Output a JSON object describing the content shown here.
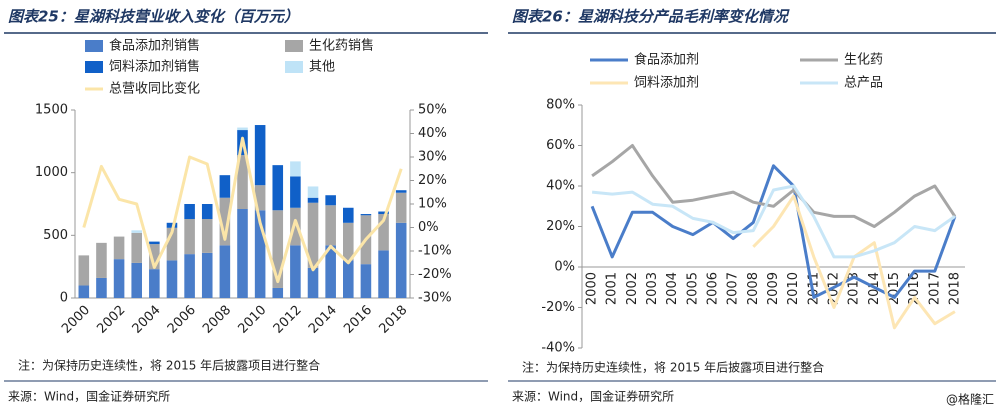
{
  "chart_data": [
    {
      "type": "bar",
      "stacked": true,
      "title": "图表25：星湖科技营业收入变化（百万元）",
      "note": "注：为保持历史连续性，将 2015 年后披露项目进行整合",
      "source": "来源：Wind，国金证券研究所",
      "categories": [
        "2000",
        null,
        "2002",
        null,
        "2004",
        null,
        "2006",
        null,
        "2008",
        null,
        "2010",
        null,
        "2012",
        null,
        "2014",
        null,
        "2016",
        null,
        "2018"
      ],
      "series": [
        {
          "name": "食品添加剂销售",
          "color": "#4a7dc9",
          "values": [
            100,
            160,
            310,
            280,
            230,
            300,
            350,
            360,
            420,
            710,
            700,
            80,
            420,
            240,
            420,
            300,
            270,
            380,
            600
          ]
        },
        {
          "name": "生化药销售",
          "color": "#a6a6a6",
          "values": [
            240,
            280,
            180,
            240,
            200,
            260,
            280,
            270,
            380,
            430,
            200,
            620,
            300,
            520,
            320,
            300,
            390,
            290,
            240
          ]
        },
        {
          "name": "饲料添加剂销售",
          "color": "#1060c8",
          "values": [
            0,
            0,
            0,
            0,
            20,
            40,
            120,
            120,
            180,
            200,
            480,
            360,
            250,
            40,
            80,
            120,
            10,
            20,
            20
          ]
        },
        {
          "name": "其他",
          "color": "#bfe3f7",
          "values": [
            0,
            0,
            0,
            20,
            0,
            0,
            0,
            0,
            0,
            20,
            0,
            0,
            120,
            90,
            0,
            0,
            0,
            0,
            0
          ]
        },
        {
          "name": "总营收同比变化",
          "type": "line",
          "axis": "y2",
          "color": "#fbe5a8",
          "values": [
            0,
            26,
            12,
            10,
            -17,
            -2,
            30,
            27,
            -5,
            38,
            2,
            -23,
            3,
            -18,
            -8,
            -15,
            -5,
            3,
            25
          ]
        }
      ],
      "ylim": [
        0,
        1500
      ],
      "yticks": [
        0,
        500,
        1000,
        1500
      ],
      "y2lim": [
        -30,
        50
      ],
      "y2ticks": [
        {
          "value": -30,
          "label": "-30%"
        },
        {
          "value": -20,
          "label": "-20%"
        },
        {
          "value": -10,
          "label": "-10%"
        },
        {
          "value": 0,
          "label": "0%"
        },
        {
          "value": 10,
          "label": "10%"
        },
        {
          "value": 20,
          "label": "20%"
        },
        {
          "value": 30,
          "label": "30%"
        },
        {
          "value": 40,
          "label": "40%"
        },
        {
          "value": 50,
          "label": "50%"
        }
      ],
      "grid": false
    },
    {
      "type": "line",
      "title": "图表26：星湖科技分产品毛利率变化情况",
      "note": "注：为保持历史连续性，将 2015 年后披露项目进行整合",
      "source": "来源：Wind，国金证券研究所",
      "categories": [
        "2000",
        "2001",
        "2002",
        "2003",
        "2004",
        "2005",
        "2006",
        "2007",
        "2008",
        "2009",
        "2010",
        "2011",
        "2012",
        "2013",
        "2014",
        "2015",
        "2016",
        "2017",
        "2018"
      ],
      "series": [
        {
          "name": "食品添加剂",
          "color": "#4a7dc9",
          "values": [
            30,
            5,
            27,
            27,
            20,
            16,
            22,
            14,
            22,
            50,
            40,
            -15,
            -10,
            -5,
            -10,
            -15,
            -2,
            -2,
            25
          ]
        },
        {
          "name": "生化药",
          "color": "#a6a6a6",
          "values": [
            45,
            52,
            60,
            45,
            32,
            33,
            35,
            37,
            32,
            30,
            38,
            27,
            25,
            25,
            20,
            27,
            35,
            40,
            25
          ]
        },
        {
          "name": "饲料添加剂",
          "color": "#fde6b4",
          "values": [
            null,
            null,
            null,
            null,
            null,
            null,
            null,
            null,
            10,
            20,
            35,
            5,
            -20,
            5,
            12,
            -30,
            -15,
            -28,
            -22
          ]
        },
        {
          "name": "总产品",
          "color": "#c8e6f7",
          "values": [
            37,
            36,
            37,
            31,
            30,
            24,
            22,
            17,
            18,
            38,
            40,
            25,
            5,
            5,
            8,
            12,
            20,
            18,
            25
          ]
        }
      ],
      "ylim": [
        -40,
        80
      ],
      "yticks": [
        {
          "value": -40,
          "label": "-40%"
        },
        {
          "value": -20,
          "label": "-20%"
        },
        {
          "value": 0,
          "label": "0%"
        },
        {
          "value": 20,
          "label": "20%"
        },
        {
          "value": 40,
          "label": "40%"
        },
        {
          "value": 60,
          "label": "60%"
        },
        {
          "value": 80,
          "label": "80%"
        }
      ],
      "grid": false
    }
  ],
  "watermark": "@格隆汇"
}
